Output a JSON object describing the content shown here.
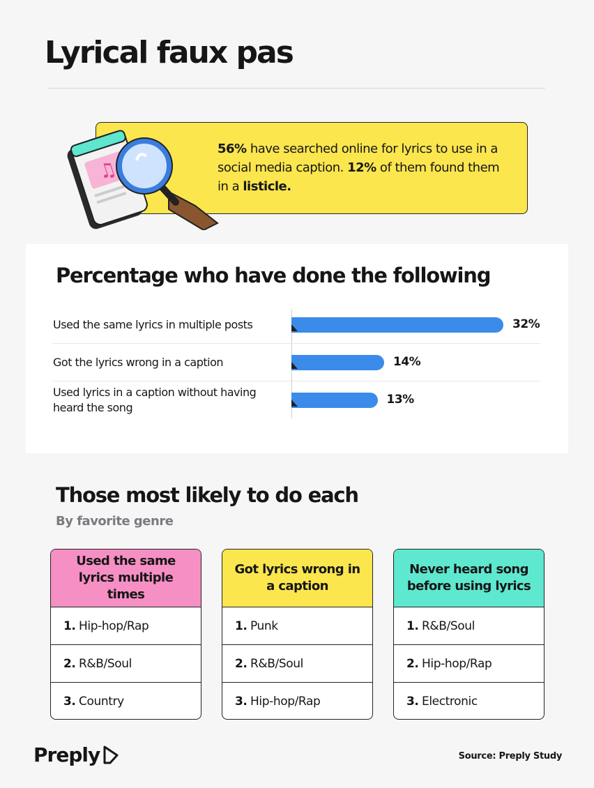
{
  "title": "Lyrical faux pas",
  "callout": {
    "parts": [
      "56%",
      " have searched online for lyrics to use in a social media caption. ",
      "12%",
      " of them found them in a ",
      "listicle."
    ]
  },
  "chart_data": {
    "type": "bar",
    "title": "Percentage who have done the following",
    "categories": [
      "Used the same lyrics in multiple posts",
      "Got the lyrics wrong in a caption",
      "Used lyrics in a caption without having heard the song"
    ],
    "values": [
      32,
      14,
      13
    ],
    "value_labels": [
      "32%",
      "14%",
      "13%"
    ],
    "color": "#3b8beb"
  },
  "genres": {
    "title": "Those most likely to do each",
    "subtitle": "By favorite genre",
    "cards": [
      {
        "header": "Used the same lyrics multiple times",
        "items": [
          {
            "rank": "1.",
            "label": "Hip-hop/Rap"
          },
          {
            "rank": "2.",
            "label": "R&B/Soul"
          },
          {
            "rank": "3.",
            "label": "Country"
          }
        ]
      },
      {
        "header": "Got lyrics wrong in a caption",
        "items": [
          {
            "rank": "1.",
            "label": "Punk"
          },
          {
            "rank": "2.",
            "label": "R&B/Soul"
          },
          {
            "rank": "3.",
            "label": "Hip-hop/Rap"
          }
        ]
      },
      {
        "header": "Never heard song before using lyrics",
        "items": [
          {
            "rank": "1.",
            "label": "R&B/Soul"
          },
          {
            "rank": "2.",
            "label": "Hip-hop/Rap"
          },
          {
            "rank": "3.",
            "label": "Electronic"
          }
        ]
      }
    ]
  },
  "footer": {
    "brand": "Preply",
    "source": "Source: Preply Study"
  }
}
